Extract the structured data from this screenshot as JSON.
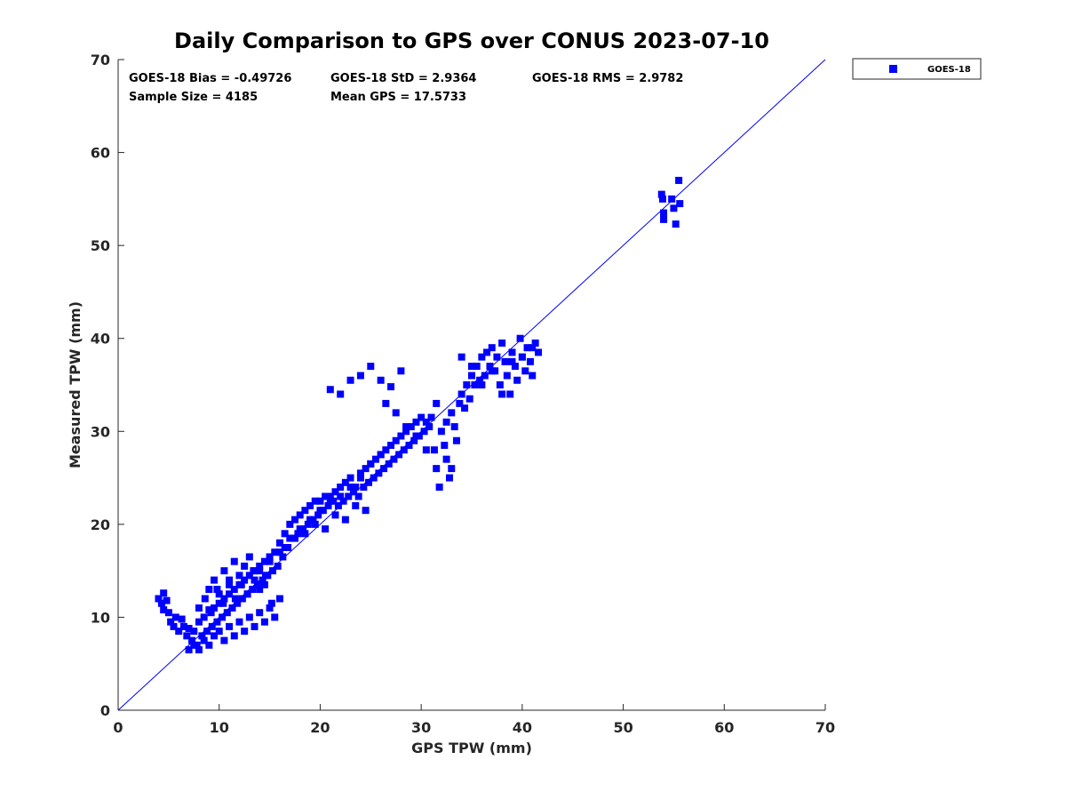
{
  "chart_data": {
    "type": "scatter",
    "title": "Daily Comparison to GPS over CONUS 2023-07-10",
    "xlabel": "GPS TPW (mm)",
    "ylabel": "Measured TPW (mm)",
    "xlim": [
      0,
      70
    ],
    "ylim": [
      0,
      70
    ],
    "xticks": [
      "0",
      "10",
      "20",
      "30",
      "40",
      "50",
      "60",
      "70"
    ],
    "yticks": [
      "0",
      "10",
      "20",
      "30",
      "40",
      "50",
      "60",
      "70"
    ],
    "grid": false,
    "legend_position": "outside-top-right",
    "stats": {
      "bias": "GOES-18 Bias = -0.49726",
      "std": "GOES-18 StD = 2.9364",
      "rms": "GOES-18 RMS = 2.9782",
      "sample": "Sample Size = 4185",
      "mean_gps": "Mean GPS = 17.5733"
    },
    "reference_line": {
      "name": "1:1 line",
      "x": [
        0,
        70
      ],
      "y": [
        0,
        70
      ],
      "color": "#0000ff"
    },
    "series": [
      {
        "name": "GOES-18",
        "color": "#0000ff",
        "marker": "square",
        "x": [
          4.0,
          4.3,
          4.5,
          4.8,
          4.5,
          5.0,
          5.2,
          5.5,
          5.7,
          6.0,
          6.3,
          6.5,
          6.8,
          7.0,
          7.3,
          7.5,
          7.8,
          8.0,
          8.3,
          8.5,
          8.8,
          9.0,
          9.3,
          9.5,
          9.8,
          10.0,
          10.3,
          10.5,
          10.8,
          11.0,
          11.3,
          11.5,
          11.8,
          12.0,
          12.3,
          12.5,
          12.8,
          13.0,
          13.3,
          13.5,
          13.8,
          14.0,
          14.3,
          14.5,
          14.8,
          15.0,
          15.3,
          15.5,
          15.8,
          16.0,
          16.3,
          16.5,
          16.8,
          17.0,
          17.3,
          17.5,
          17.8,
          18.0,
          18.3,
          18.5,
          18.8,
          19.0,
          19.3,
          19.5,
          19.8,
          20.0,
          20.3,
          20.5,
          20.8,
          21.0,
          21.3,
          21.5,
          21.8,
          22.0,
          22.3,
          22.5,
          22.8,
          23.0,
          23.3,
          23.5,
          23.8,
          24.0,
          24.3,
          24.5,
          24.8,
          25.0,
          25.3,
          25.5,
          25.8,
          26.0,
          26.3,
          26.5,
          26.8,
          27.0,
          27.3,
          27.5,
          27.8,
          28.0,
          28.3,
          28.5,
          28.8,
          29.0,
          29.3,
          29.5,
          29.8,
          30.0,
          30.3,
          30.5,
          30.8,
          31.0,
          31.3,
          31.5,
          31.8,
          32.0,
          32.3,
          32.5,
          32.8,
          33.0,
          33.3,
          33.5,
          33.8,
          34.0,
          34.3,
          34.5,
          34.8,
          35.0,
          35.3,
          35.5,
          35.8,
          36.0,
          36.3,
          36.5,
          36.8,
          37.0,
          37.3,
          37.5,
          37.8,
          38.0,
          38.3,
          38.5,
          38.8,
          39.0,
          39.3,
          39.5,
          39.8,
          40.0,
          40.3,
          40.5,
          40.8,
          41.0,
          41.3,
          41.6,
          7.0,
          7.5,
          8.0,
          8.5,
          9.0,
          9.5,
          10.0,
          10.5,
          11.0,
          11.5,
          12.0,
          12.5,
          13.0,
          13.5,
          14.0,
          14.5,
          15.0,
          15.5,
          16.0,
          9.0,
          9.5,
          10.0,
          10.5,
          11.0,
          11.5,
          12.0,
          12.5,
          13.0,
          13.5,
          14.0,
          14.5,
          15.0,
          16.0,
          17.0,
          18.0,
          19.0,
          20.0,
          21.0,
          22.0,
          23.0,
          24.0,
          25.0,
          26.0,
          8.0,
          8.6,
          9.2,
          9.8,
          10.4,
          11.0,
          11.6,
          12.2,
          12.8,
          13.4,
          14.0,
          14.6,
          15.2,
          16.5,
          17.5,
          18.5,
          19.5,
          20.5,
          21.5,
          22.5,
          23.5,
          24.5,
          21.0,
          22.0,
          23.0,
          24.0,
          25.0,
          26.0,
          27.0,
          28.0,
          26.5,
          27.5,
          28.5,
          29.5,
          30.5,
          31.5,
          32.5,
          33.0,
          34.0,
          35.0,
          36.0,
          37.0,
          38.0,
          39.0,
          40.0,
          41.0,
          53.8,
          54.0,
          54.8,
          55.0,
          55.5,
          55.6,
          54.0,
          55.2,
          53.9
        ],
        "y": [
          12.0,
          11.5,
          10.8,
          11.8,
          12.6,
          10.5,
          9.5,
          9.0,
          10.0,
          8.5,
          9.8,
          9.0,
          8.0,
          8.8,
          7.5,
          8.5,
          7.0,
          9.5,
          8.0,
          10.0,
          8.5,
          10.8,
          9.0,
          11.0,
          9.5,
          11.5,
          10.0,
          12.0,
          10.5,
          12.5,
          11.0,
          13.0,
          11.5,
          13.5,
          12.0,
          14.0,
          12.5,
          14.5,
          13.0,
          15.0,
          13.5,
          15.5,
          14.0,
          16.0,
          14.5,
          16.5,
          15.0,
          17.0,
          15.5,
          18.0,
          16.5,
          19.0,
          17.5,
          20.0,
          18.5,
          20.5,
          19.0,
          21.0,
          19.5,
          21.5,
          20.0,
          22.0,
          20.5,
          22.5,
          21.0,
          22.5,
          21.5,
          23.0,
          22.0,
          23.0,
          22.5,
          23.5,
          22.0,
          24.0,
          22.5,
          24.5,
          23.0,
          25.0,
          23.5,
          24.0,
          23.0,
          25.0,
          24.0,
          26.0,
          24.5,
          26.5,
          25.0,
          27.0,
          25.5,
          27.5,
          26.0,
          28.0,
          26.5,
          28.5,
          27.0,
          29.0,
          27.5,
          29.5,
          28.0,
          30.0,
          28.5,
          30.5,
          29.0,
          31.0,
          29.5,
          31.5,
          30.0,
          31.0,
          30.5,
          31.5,
          28.0,
          26.0,
          24.0,
          30.0,
          28.5,
          27.0,
          25.0,
          32.0,
          30.5,
          29.0,
          33.0,
          34.0,
          32.5,
          35.0,
          33.5,
          36.0,
          35.0,
          37.0,
          35.5,
          38.0,
          36.0,
          38.5,
          37.0,
          39.0,
          36.5,
          38.0,
          35.0,
          39.5,
          37.5,
          36.0,
          34.0,
          38.5,
          37.0,
          35.5,
          40.0,
          38.0,
          36.5,
          39.0,
          37.5,
          36.0,
          39.5,
          38.5,
          6.5,
          7.0,
          6.5,
          7.5,
          7.0,
          8.0,
          8.5,
          7.5,
          9.0,
          8.0,
          9.5,
          8.5,
          10.0,
          9.0,
          10.5,
          9.5,
          11.0,
          10.0,
          12.0,
          13.0,
          14.0,
          12.5,
          15.0,
          13.5,
          16.0,
          14.5,
          15.5,
          16.5,
          14.0,
          15.0,
          13.5,
          16.0,
          17.0,
          18.5,
          19.5,
          20.5,
          21.5,
          22.5,
          23.0,
          24.0,
          25.5,
          26.5,
          27.5,
          11.0,
          12.0,
          10.5,
          13.0,
          11.5,
          14.0,
          12.0,
          13.5,
          12.5,
          15.0,
          13.0,
          14.5,
          11.5,
          17.5,
          18.5,
          19.0,
          20.0,
          19.5,
          21.0,
          20.5,
          22.0,
          21.5,
          34.5,
          34.0,
          35.5,
          36.0,
          37.0,
          35.5,
          34.8,
          36.5,
          33.0,
          32.0,
          30.5,
          29.5,
          28.0,
          33.0,
          31.0,
          26.0,
          38.0,
          37.0,
          35.0,
          36.5,
          34.0,
          37.5,
          38.0,
          39.0,
          55.5,
          53.5,
          55.0,
          54.0,
          57.0,
          54.5,
          52.8,
          52.3,
          55.0
        ]
      }
    ]
  }
}
